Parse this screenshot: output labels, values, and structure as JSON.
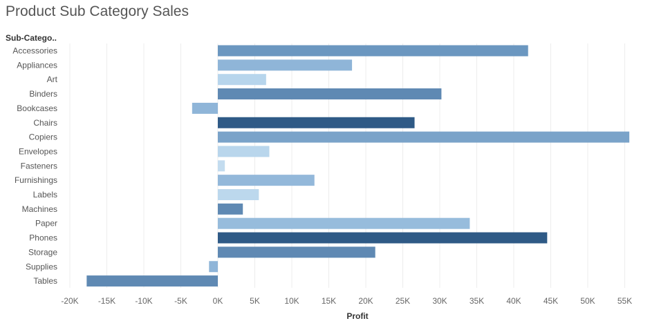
{
  "chart_data": {
    "type": "bar",
    "orientation": "horizontal",
    "title": "Product Sub Category Sales",
    "category_header": "Sub-Catego..",
    "xlabel": "Profit",
    "xlim": [
      -21000,
      58000
    ],
    "grid": true,
    "x_ticks": [
      -20000,
      -15000,
      -10000,
      -5000,
      0,
      5000,
      10000,
      15000,
      20000,
      25000,
      30000,
      35000,
      40000,
      45000,
      50000,
      55000
    ],
    "x_tick_labels": [
      "-20K",
      "-15K",
      "-10K",
      "-5K",
      "0K",
      "5K",
      "10K",
      "15K",
      "20K",
      "25K",
      "30K",
      "35K",
      "40K",
      "45K",
      "50K",
      "55K"
    ],
    "categories": [
      "Accessories",
      "Appliances",
      "Art",
      "Binders",
      "Bookcases",
      "Chairs",
      "Copiers",
      "Envelopes",
      "Fasteners",
      "Furnishings",
      "Labels",
      "Machines",
      "Paper",
      "Phones",
      "Storage",
      "Supplies",
      "Tables"
    ],
    "values": [
      41937,
      18138,
      6528,
      30222,
      -3473,
      26590,
      55618,
      6964,
      950,
      13059,
      5546,
      3385,
      34054,
      44516,
      21279,
      -1189,
      -17725
    ],
    "colors": [
      "#6b97c0",
      "#8fb5d8",
      "#b7d5ec",
      "#5f89b3",
      "#8fb5d8",
      "#2f5a86",
      "#7aa3c9",
      "#b9d6ec",
      "#c3dcef",
      "#93b8da",
      "#bcd8ed",
      "#5f89b3",
      "#97bcdc",
      "#2f5a86",
      "#5f89b3",
      "#8fb5d8",
      "#5f89b3"
    ]
  }
}
